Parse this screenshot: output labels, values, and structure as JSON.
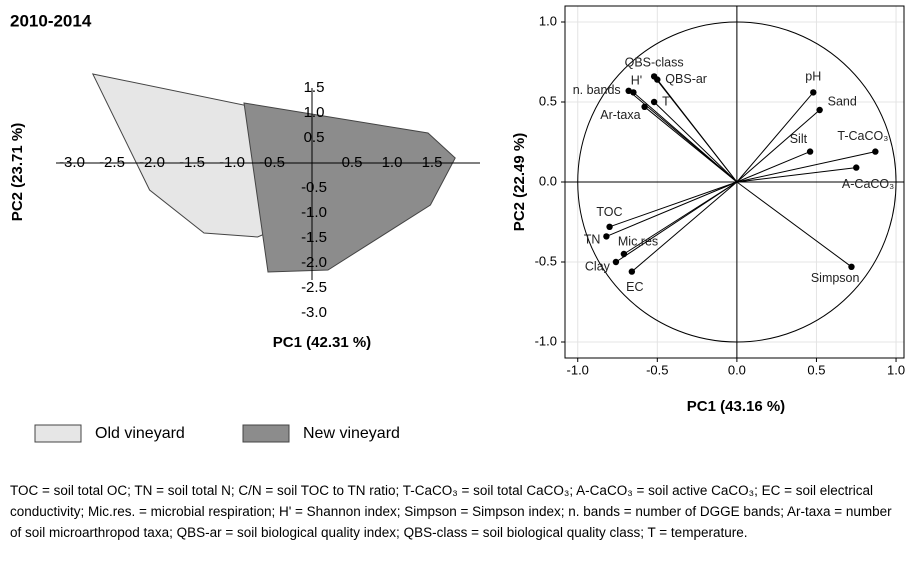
{
  "chart_data": [
    {
      "type": "polygon",
      "title": "2010-2014",
      "xlabel": "PC1 (42.31 %)",
      "ylabel": "PC2 (23.71 %)",
      "xlim": [
        -3.2,
        2.1
      ],
      "ylim": [
        -3.0,
        1.5
      ],
      "xticks": [
        {
          "value": -3.0,
          "label": "-3.0"
        },
        -2.5,
        {
          "value": -2.0,
          "label": "-2.0"
        },
        -1.5,
        {
          "value": -1.0,
          "label": "-1.0"
        },
        -0.5,
        0.5,
        {
          "value": 1.0,
          "label": "1.0"
        },
        1.5
      ],
      "yticks": [
        1.5,
        {
          "value": 1.0,
          "label": "1.0"
        },
        0.5,
        -0.5,
        {
          "value": -1.0,
          "label": "-1.0"
        },
        -1.5,
        {
          "value": -2.0,
          "label": "-2.0"
        },
        -2.5,
        {
          "value": -3.0,
          "label": "-3.0"
        }
      ],
      "series": [
        {
          "name": "Old vineyard",
          "color": "#e6e6e6",
          "x": [
            -2.74,
            0.48,
            0.39,
            -0.68,
            -1.35,
            -2.03
          ],
          "values": [
            1.78,
            0.72,
            -0.74,
            -1.48,
            -1.4,
            -0.54
          ]
        },
        {
          "name": "New vineyard",
          "color": "#8c8c8c",
          "x": [
            -0.85,
            1.45,
            1.79,
            1.48,
            0.2,
            -0.55
          ],
          "values": [
            1.2,
            0.6,
            0.1,
            -0.84,
            -2.14,
            -2.18
          ]
        }
      ]
    },
    {
      "type": "biplot",
      "xlabel": "PC1 (43.16 %)",
      "ylabel": "PC2 (22.49 %)",
      "xlim": [
        -1.08,
        1.05
      ],
      "ylim": [
        -1.1,
        1.1
      ],
      "xticks": [
        {
          "value": -1.0,
          "label": "-1.0"
        },
        -0.5,
        {
          "value": 0.0,
          "label": "0.0"
        },
        0.5,
        {
          "value": 1.0,
          "label": "1.0"
        }
      ],
      "yticks": [
        {
          "value": -1.0,
          "label": "-1.0"
        },
        -0.5,
        {
          "value": 0.0,
          "label": "0.0"
        },
        0.5,
        {
          "value": 1.0,
          "label": "1.0"
        }
      ],
      "grid": true,
      "labels": [
        "pH",
        "Sand",
        "Silt",
        "T-CaCO₃",
        "A-CaCO₃",
        "Simpson",
        "QBS-class",
        "QBS-ar",
        "H'",
        "n. bands",
        "T",
        "Ar-taxa",
        "TOC",
        "TN",
        "Mic.res",
        "Clay",
        "EC"
      ],
      "x": [
        0.48,
        0.52,
        0.46,
        0.87,
        0.75,
        0.72,
        -0.52,
        -0.5,
        -0.65,
        -0.68,
        -0.52,
        -0.58,
        -0.8,
        -0.82,
        -0.71,
        -0.76,
        -0.66
      ],
      "values": [
        0.56,
        0.45,
        0.19,
        0.19,
        0.09,
        -0.53,
        0.66,
        0.64,
        0.56,
        0.57,
        0.5,
        0.47,
        -0.28,
        -0.34,
        -0.45,
        -0.5,
        -0.56
      ]
    }
  ],
  "caption": "TOC = soil total OC; TN = soil total N; C/N = soil TOC to TN ratio; T-CaCO₃ = soil total CaCO₃; A-CaCO₃ = soil active CaCO₃; EC = soil electrical conductivity; Mic.res. = microbial respiration; H' = Shannon index; Simpson = Simpson index; n. bands = number of DGGE bands; Ar-taxa = number of soil microarthropod taxa; QBS-ar = soil biological quality index; QBS-class = soil biological quality class; T = temperature."
}
